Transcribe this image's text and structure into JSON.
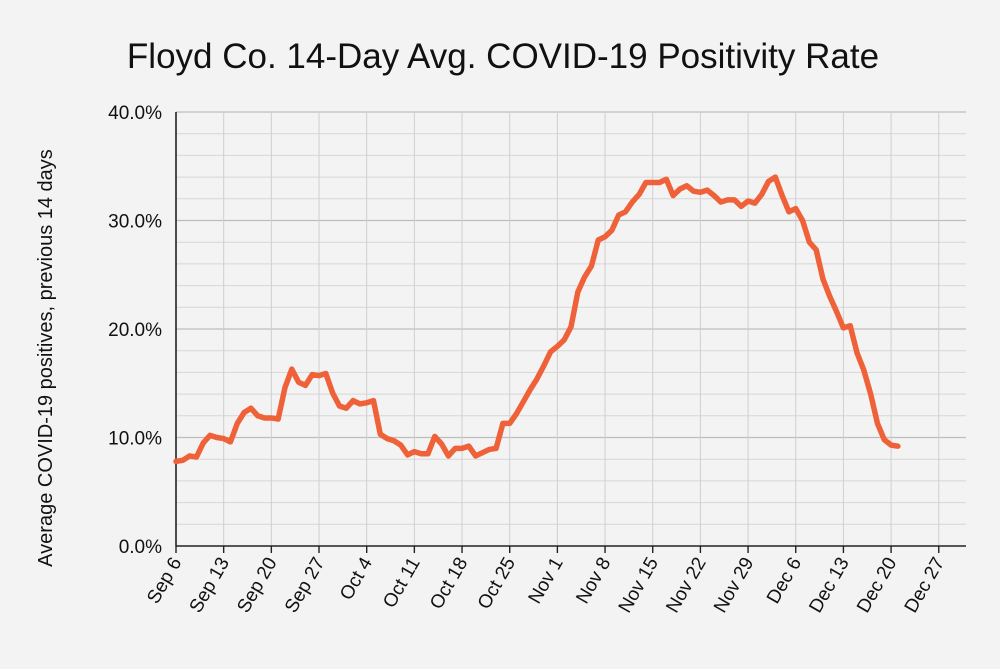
{
  "chart_data": {
    "type": "line",
    "title": "Floyd Co. 14-Day Avg. COVID-19 Positivity Rate",
    "xlabel": "",
    "ylabel": "Average COVID-19 positives, previous 14 days",
    "ylim": [
      0,
      40
    ],
    "y_ticks": [
      "0.0%",
      "10.0%",
      "20.0%",
      "30.0%",
      "40.0%"
    ],
    "x_ticks": [
      "Sep 6",
      "Sep 13",
      "Sep 20",
      "Sep 27",
      "Oct 4",
      "Oct 11",
      "Oct 18",
      "Oct 25",
      "Nov 1",
      "Nov 8",
      "Nov 15",
      "Nov 22",
      "Nov 29",
      "Dec 6",
      "Dec 13",
      "Dec 20",
      "Dec 27"
    ],
    "x_range": [
      "Sep 6",
      "Dec 31"
    ],
    "grid": true,
    "legend": "none",
    "series": [
      {
        "color": "#ef6239",
        "x": [
          "Sep 6",
          "Sep 7",
          "Sep 8",
          "Sep 9",
          "Sep 10",
          "Sep 11",
          "Sep 12",
          "Sep 13",
          "Sep 14",
          "Sep 15",
          "Sep 16",
          "Sep 17",
          "Sep 18",
          "Sep 19",
          "Sep 20",
          "Sep 21",
          "Sep 22",
          "Sep 23",
          "Sep 24",
          "Sep 25",
          "Sep 26",
          "Sep 27",
          "Sep 28",
          "Sep 29",
          "Sep 30",
          "Oct 1",
          "Oct 2",
          "Oct 3",
          "Oct 4",
          "Oct 5",
          "Oct 6",
          "Oct 7",
          "Oct 8",
          "Oct 9",
          "Oct 10",
          "Oct 11",
          "Oct 12",
          "Oct 13",
          "Oct 14",
          "Oct 15",
          "Oct 16",
          "Oct 17",
          "Oct 18",
          "Oct 19",
          "Oct 20",
          "Oct 21",
          "Oct 22",
          "Oct 23",
          "Oct 24",
          "Oct 25",
          "Oct 26",
          "Oct 27",
          "Oct 28",
          "Oct 29",
          "Oct 30",
          "Oct 31",
          "Nov 1",
          "Nov 2",
          "Nov 3",
          "Nov 4",
          "Nov 5",
          "Nov 6",
          "Nov 7",
          "Nov 8",
          "Nov 9",
          "Nov 10",
          "Nov 11",
          "Nov 12",
          "Nov 13",
          "Nov 14",
          "Nov 15",
          "Nov 16",
          "Nov 17",
          "Nov 18",
          "Nov 19",
          "Nov 20",
          "Nov 21",
          "Nov 22",
          "Nov 23",
          "Nov 24",
          "Nov 25",
          "Nov 26",
          "Nov 27",
          "Nov 28",
          "Nov 29",
          "Nov 30",
          "Dec 1",
          "Dec 2",
          "Dec 3",
          "Dec 4",
          "Dec 5",
          "Dec 6",
          "Dec 7",
          "Dec 8",
          "Dec 9",
          "Dec 10",
          "Dec 11",
          "Dec 12",
          "Dec 13",
          "Dec 14",
          "Dec 15",
          "Dec 16",
          "Dec 17",
          "Dec 18",
          "Dec 19",
          "Dec 20",
          "Dec 21"
        ],
        "values": [
          7.8,
          7.9,
          8.3,
          8.2,
          9.5,
          10.2,
          10.0,
          9.9,
          9.6,
          11.3,
          12.3,
          12.7,
          12.0,
          11.8,
          11.8,
          11.7,
          14.6,
          16.3,
          15.1,
          14.8,
          15.8,
          15.7,
          15.9,
          14.1,
          12.9,
          12.7,
          13.4,
          13.1,
          13.2,
          13.4,
          10.3,
          9.9,
          9.7,
          9.3,
          8.4,
          8.7,
          8.5,
          8.5,
          10.1,
          9.4,
          8.3,
          9.0,
          9.0,
          9.2,
          8.3,
          8.6,
          8.9,
          9.0,
          11.3,
          11.3,
          12.2,
          13.3,
          14.4,
          15.4,
          16.6,
          17.9,
          18.4,
          19.0,
          20.2,
          23.4,
          24.8,
          25.8,
          28.2,
          28.5,
          29.1,
          30.5,
          30.8,
          31.7,
          32.4,
          33.5,
          33.5,
          33.5,
          33.8,
          32.3,
          32.9,
          33.2,
          32.7,
          32.6,
          32.8,
          32.3,
          31.7,
          31.9,
          31.9,
          31.3,
          31.8,
          31.6,
          32.4,
          33.6,
          34.0,
          32.3,
          30.8,
          31.1,
          30.0,
          28.0,
          27.3,
          24.6,
          23.0,
          21.6,
          20.1,
          20.3,
          17.8,
          16.2,
          14.0,
          11.3,
          9.8,
          9.3,
          9.2
        ]
      }
    ]
  }
}
